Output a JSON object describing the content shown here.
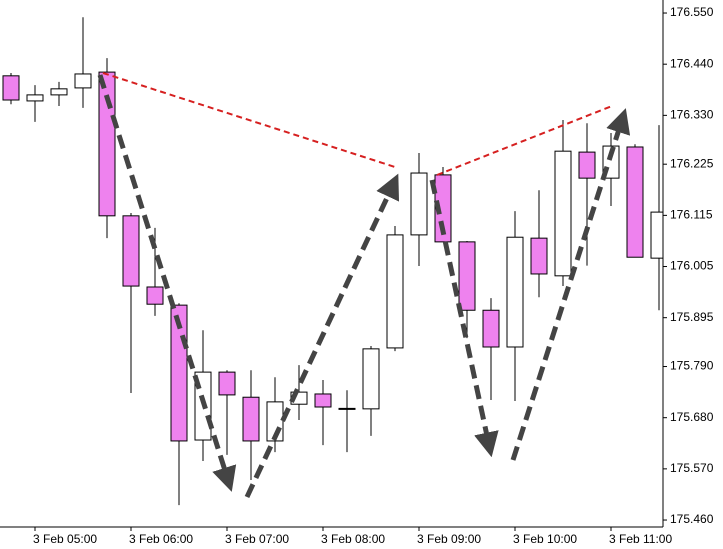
{
  "chart_data": {
    "type": "candlestick",
    "categories": [
      null,
      "3 Feb 05:00",
      null,
      null,
      null,
      "3 Feb 06:00",
      null,
      null,
      null,
      "3 Feb 07:00",
      null,
      null,
      null,
      "3 Feb 08:00",
      null,
      null,
      null,
      "3 Feb 09:00",
      null,
      null,
      null,
      "3 Feb 10:00",
      null,
      null,
      null,
      "3 Feb 11:00",
      null,
      null
    ],
    "open": [
      176.415,
      176.361,
      176.374,
      176.389,
      176.423,
      176.114,
      175.961,
      175.922,
      175.632,
      175.778,
      175.724,
      175.63,
      175.709,
      175.731,
      175.7,
      175.699,
      175.83,
      176.073,
      176.202,
      176.058,
      175.911,
      175.832,
      176.066,
      175.985,
      176.251,
      176.195,
      176.262,
      176.023
    ],
    "high": [
      176.421,
      176.395,
      176.402,
      176.541,
      176.453,
      176.12,
      176.088,
      175.926,
      175.868,
      175.782,
      175.782,
      175.767,
      175.793,
      175.761,
      175.739,
      175.834,
      176.092,
      176.249,
      176.219,
      176.06,
      175.937,
      176.124,
      176.169,
      176.32,
      176.313,
      176.292,
      176.268,
      176.309
    ],
    "low": [
      176.354,
      176.316,
      176.35,
      176.346,
      176.066,
      175.733,
      175.899,
      175.492,
      175.587,
      175.6,
      175.546,
      175.606,
      175.675,
      175.621,
      175.606,
      175.641,
      175.823,
      176.006,
      176.058,
      175.851,
      175.718,
      175.716,
      175.939,
      175.963,
      176.007,
      176.135,
      176.025,
      175.911
    ],
    "close": [
      176.363,
      176.374,
      176.387,
      176.419,
      176.114,
      175.963,
      175.924,
      175.63,
      175.778,
      175.729,
      175.63,
      175.714,
      175.735,
      175.703,
      175.699,
      175.828,
      176.073,
      176.206,
      176.058,
      175.911,
      175.832,
      176.068,
      175.989,
      176.253,
      176.195,
      176.264,
      176.025,
      176.122
    ],
    "up_color": "#ffffff",
    "down_color": "#ee82ee",
    "ylim": [
      175.445,
      176.578
    ],
    "yticks": [
      {
        "value": 176.55,
        "label": "176.550"
      },
      {
        "value": 176.44,
        "label": "176.440"
      },
      {
        "value": 176.33,
        "label": "176.330"
      },
      176.225,
      176.115,
      176.005,
      175.895,
      {
        "value": 175.79,
        "label": "175.790"
      },
      {
        "value": 175.68,
        "label": "175.680"
      },
      {
        "value": 175.57,
        "label": "175.570"
      },
      {
        "value": 175.46,
        "label": "175.460"
      }
    ]
  }
}
